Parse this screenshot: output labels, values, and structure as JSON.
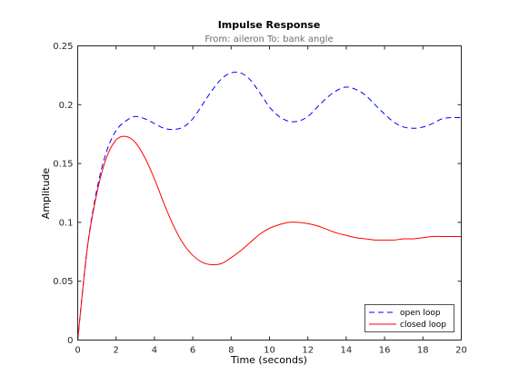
{
  "chart_data": {
    "type": "line",
    "title": "Impulse Response",
    "subtitle": "From: aileron  To: bank angle",
    "xlabel": "Time (seconds)",
    "ylabel": "Amplitude",
    "xlim": [
      0,
      20
    ],
    "ylim": [
      0,
      0.25
    ],
    "xticks": [
      "0",
      "2",
      "4",
      "6",
      "8",
      "10",
      "12",
      "14",
      "16",
      "18",
      "20"
    ],
    "yticks": [
      "0",
      "0.05",
      "0.1",
      "0.15",
      "0.2",
      "0.25"
    ],
    "xtick_values": [
      0,
      2,
      4,
      6,
      8,
      10,
      12,
      14,
      16,
      18,
      20
    ],
    "ytick_values": [
      0,
      0.05,
      0.1,
      0.15,
      0.2,
      0.25
    ],
    "grid": false,
    "legend_position": "bottom-right",
    "series": [
      {
        "name": "open loop",
        "color": "#0000ff",
        "style": "dashed",
        "x": [
          0,
          0.5,
          1,
          1.5,
          2,
          2.5,
          3,
          3.5,
          4,
          4.5,
          5,
          5.5,
          6,
          6.5,
          7,
          7.5,
          8,
          8.5,
          9,
          9.5,
          10,
          10.5,
          11,
          11.5,
          12,
          12.5,
          13,
          13.5,
          14,
          14.5,
          15,
          15.5,
          16,
          16.5,
          17,
          17.5,
          18,
          18.5,
          19,
          19.5,
          20
        ],
        "y": [
          0,
          0.078,
          0.128,
          0.16,
          0.178,
          0.186,
          0.19,
          0.188,
          0.184,
          0.18,
          0.179,
          0.181,
          0.188,
          0.2,
          0.212,
          0.222,
          0.227,
          0.227,
          0.221,
          0.21,
          0.198,
          0.19,
          0.186,
          0.186,
          0.19,
          0.198,
          0.206,
          0.212,
          0.215,
          0.213,
          0.208,
          0.2,
          0.192,
          0.185,
          0.181,
          0.18,
          0.181,
          0.184,
          0.188,
          0.189,
          0.189
        ]
      },
      {
        "name": "closed loop",
        "color": "#ff0000",
        "style": "solid",
        "x": [
          0,
          0.5,
          1,
          1.5,
          2,
          2.5,
          3,
          3.5,
          4,
          4.5,
          5,
          5.5,
          6,
          6.5,
          7,
          7.5,
          8,
          8.5,
          9,
          9.5,
          10,
          10.5,
          11,
          11.5,
          12,
          12.5,
          13,
          13.5,
          14,
          14.5,
          15,
          15.5,
          16,
          16.5,
          17,
          17.5,
          18,
          18.5,
          19,
          19.5,
          20
        ],
        "y": [
          0,
          0.078,
          0.125,
          0.155,
          0.17,
          0.173,
          0.168,
          0.155,
          0.137,
          0.116,
          0.097,
          0.082,
          0.072,
          0.066,
          0.064,
          0.065,
          0.07,
          0.076,
          0.083,
          0.09,
          0.095,
          0.098,
          0.1,
          0.1,
          0.099,
          0.097,
          0.094,
          0.091,
          0.089,
          0.087,
          0.086,
          0.085,
          0.085,
          0.085,
          0.086,
          0.086,
          0.087,
          0.088,
          0.088,
          0.088,
          0.088
        ]
      }
    ]
  }
}
